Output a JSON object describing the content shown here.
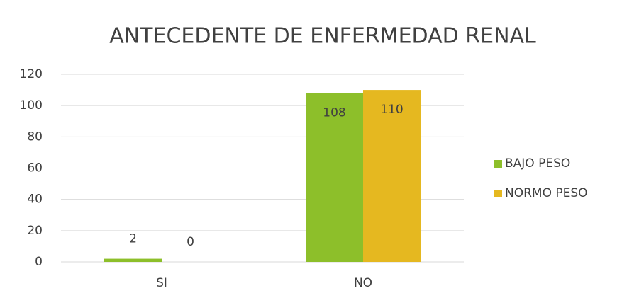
{
  "chart_data": {
    "type": "bar",
    "title": "ANTECEDENTE DE ENFERMEDAD RENAL",
    "categories": [
      "SI",
      "NO"
    ],
    "series": [
      {
        "name": "BAJO PESO",
        "color": "#8dbf2a",
        "values": [
          2,
          108
        ]
      },
      {
        "name": "NORMO PESO",
        "color": "#e5b820",
        "values": [
          0,
          110
        ]
      }
    ],
    "ylim": [
      0,
      120
    ],
    "yticks": [
      0,
      20,
      40,
      60,
      80,
      100,
      120
    ],
    "grid": true,
    "legend": "right"
  }
}
